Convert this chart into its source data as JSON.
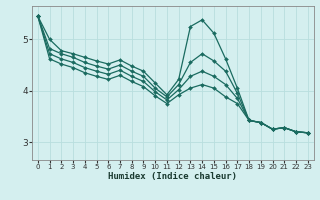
{
  "xlabel": "Humidex (Indice chaleur)",
  "bg_color": "#d4efef",
  "line_color": "#1a6b60",
  "grid_color": "#b8dede",
  "x_ticks": [
    0,
    1,
    2,
    3,
    4,
    5,
    6,
    7,
    8,
    9,
    10,
    11,
    12,
    13,
    14,
    15,
    16,
    17,
    18,
    19,
    20,
    21,
    22,
    23
  ],
  "y_ticks": [
    3,
    4,
    5
  ],
  "ylim": [
    2.65,
    5.65
  ],
  "xlim": [
    -0.5,
    23.5
  ],
  "series": [
    [
      5.45,
      5.0,
      4.78,
      4.72,
      4.65,
      4.58,
      4.52,
      4.6,
      4.48,
      4.38,
      4.15,
      3.92,
      4.22,
      5.25,
      5.38,
      5.12,
      4.62,
      4.05,
      3.42,
      3.38,
      3.25,
      3.28,
      3.2,
      3.18
    ],
    [
      5.45,
      4.82,
      4.72,
      4.65,
      4.55,
      4.48,
      4.42,
      4.5,
      4.38,
      4.28,
      4.05,
      3.88,
      4.12,
      4.55,
      4.72,
      4.58,
      4.38,
      3.95,
      3.42,
      3.38,
      3.25,
      3.28,
      3.2,
      3.18
    ],
    [
      5.45,
      4.72,
      4.62,
      4.55,
      4.45,
      4.38,
      4.32,
      4.4,
      4.28,
      4.18,
      3.98,
      3.82,
      4.02,
      4.28,
      4.38,
      4.28,
      4.12,
      3.85,
      3.42,
      3.38,
      3.25,
      3.28,
      3.2,
      3.18
    ],
    [
      5.45,
      4.62,
      4.52,
      4.45,
      4.35,
      4.28,
      4.22,
      4.3,
      4.18,
      4.08,
      3.9,
      3.75,
      3.92,
      4.05,
      4.12,
      4.05,
      3.88,
      3.75,
      3.42,
      3.38,
      3.25,
      3.28,
      3.2,
      3.18
    ]
  ],
  "marker": "D",
  "marker_size": 2.0,
  "linewidth": 0.9
}
